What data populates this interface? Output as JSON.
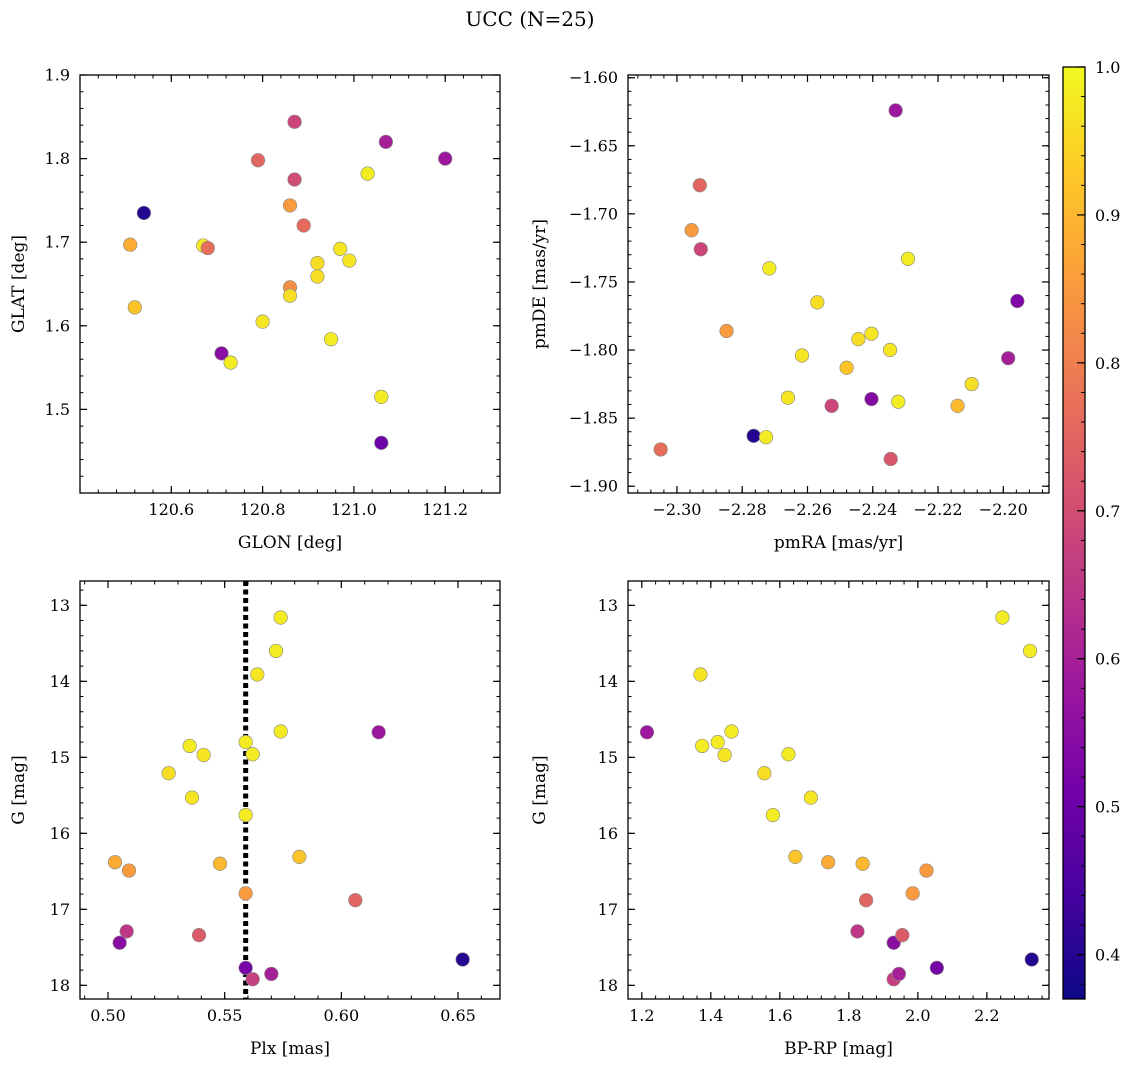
{
  "title": "UCC (N=25)",
  "colorbar": {
    "min": 0.37,
    "max": 1.0,
    "ticks": [
      0.4,
      0.5,
      0.6,
      0.7,
      0.8,
      0.9,
      1.0
    ],
    "tick_labels": [
      "0.4",
      "0.5",
      "0.6",
      "0.7",
      "0.8",
      "0.9",
      "1.0"
    ],
    "colormap": "plasma",
    "stops": [
      "#0d0887",
      "#46039f",
      "#7201a8",
      "#9c179e",
      "#bd3786",
      "#d8576b",
      "#ed7953",
      "#fb9f3a",
      "#fdca26",
      "#f0f921"
    ]
  },
  "chart_data": [
    {
      "type": "scatter",
      "id": "glon-glat",
      "xlabel": "GLON [deg]",
      "ylabel": "GLAT [deg]",
      "xlim": [
        120.4,
        121.32
      ],
      "ylim": [
        1.4,
        1.9
      ],
      "invert_y": false,
      "xticks": [
        120.6,
        120.8,
        121.0,
        121.2
      ],
      "xtick_labels": [
        "120.6",
        "120.8",
        "121.0",
        "121.2"
      ],
      "yticks": [
        1.5,
        1.6,
        1.7,
        1.8,
        1.9
      ],
      "ytick_labels": [
        "1.5",
        "1.6",
        "1.7",
        "1.8",
        "1.9"
      ],
      "points": [
        {
          "x": 120.54,
          "y": 1.735,
          "c": 0.4
        },
        {
          "x": 120.51,
          "y": 1.697,
          "c": 0.88
        },
        {
          "x": 120.52,
          "y": 1.622,
          "c": 0.92
        },
        {
          "x": 120.67,
          "y": 1.696,
          "c": 0.98
        },
        {
          "x": 120.68,
          "y": 1.693,
          "c": 0.77
        },
        {
          "x": 120.71,
          "y": 1.567,
          "c": 0.55
        },
        {
          "x": 120.73,
          "y": 1.556,
          "c": 0.98
        },
        {
          "x": 120.79,
          "y": 1.798,
          "c": 0.75
        },
        {
          "x": 120.8,
          "y": 1.605,
          "c": 0.97
        },
        {
          "x": 120.86,
          "y": 1.744,
          "c": 0.85
        },
        {
          "x": 120.86,
          "y": 1.646,
          "c": 0.83
        },
        {
          "x": 120.86,
          "y": 1.636,
          "c": 0.96
        },
        {
          "x": 120.87,
          "y": 1.844,
          "c": 0.68
        },
        {
          "x": 120.87,
          "y": 1.775,
          "c": 0.7
        },
        {
          "x": 120.89,
          "y": 1.72,
          "c": 0.76
        },
        {
          "x": 120.92,
          "y": 1.675,
          "c": 0.96
        },
        {
          "x": 120.92,
          "y": 1.659,
          "c": 0.96
        },
        {
          "x": 120.95,
          "y": 1.584,
          "c": 0.98
        },
        {
          "x": 120.97,
          "y": 1.692,
          "c": 0.97
        },
        {
          "x": 120.99,
          "y": 1.678,
          "c": 0.97
        },
        {
          "x": 121.03,
          "y": 1.782,
          "c": 0.98
        },
        {
          "x": 121.06,
          "y": 1.515,
          "c": 0.98
        },
        {
          "x": 121.06,
          "y": 1.46,
          "c": 0.5
        },
        {
          "x": 121.07,
          "y": 1.82,
          "c": 0.6
        },
        {
          "x": 121.2,
          "y": 1.8,
          "c": 0.58
        }
      ]
    },
    {
      "type": "scatter",
      "id": "pmra-pmde",
      "xlabel": "pmRA [mas/yr]",
      "ylabel": "pmDE [mas/yr]",
      "xlim": [
        -2.315,
        -2.186
      ],
      "ylim": [
        -1.905,
        -1.598
      ],
      "invert_y": false,
      "xticks": [
        -2.3,
        -2.28,
        -2.26,
        -2.24,
        -2.22,
        -2.2
      ],
      "xtick_labels": [
        "−2.30",
        "−2.28",
        "−2.26",
        "−2.24",
        "−2.22",
        "−2.20"
      ],
      "yticks": [
        -1.9,
        -1.85,
        -1.8,
        -1.75,
        -1.7,
        -1.65,
        -1.6
      ],
      "ytick_labels": [
        "−1.90",
        "−1.85",
        "−1.80",
        "−1.75",
        "−1.70",
        "−1.65",
        "−1.60"
      ],
      "points": [
        {
          "x": -2.305,
          "y": -1.873,
          "c": 0.77
        },
        {
          "x": -2.2955,
          "y": -1.712,
          "c": 0.85
        },
        {
          "x": -2.293,
          "y": -1.679,
          "c": 0.75
        },
        {
          "x": -2.2927,
          "y": -1.726,
          "c": 0.68
        },
        {
          "x": -2.2848,
          "y": -1.786,
          "c": 0.85
        },
        {
          "x": -2.2765,
          "y": -1.863,
          "c": 0.4
        },
        {
          "x": -2.2727,
          "y": -1.864,
          "c": 0.98
        },
        {
          "x": -2.2717,
          "y": -1.74,
          "c": 0.98
        },
        {
          "x": -2.266,
          "y": -1.835,
          "c": 0.97
        },
        {
          "x": -2.2617,
          "y": -1.804,
          "c": 0.97
        },
        {
          "x": -2.257,
          "y": -1.765,
          "c": 0.96
        },
        {
          "x": -2.2526,
          "y": -1.841,
          "c": 0.68
        },
        {
          "x": -2.248,
          "y": -1.813,
          "c": 0.92
        },
        {
          "x": -2.2444,
          "y": -1.792,
          "c": 0.96
        },
        {
          "x": -2.2404,
          "y": -1.788,
          "c": 0.97
        },
        {
          "x": -2.2404,
          "y": -1.836,
          "c": 0.54
        },
        {
          "x": -2.2347,
          "y": -1.8,
          "c": 0.97
        },
        {
          "x": -2.2345,
          "y": -1.88,
          "c": 0.72
        },
        {
          "x": -2.233,
          "y": -1.624,
          "c": 0.58
        },
        {
          "x": -2.2322,
          "y": -1.838,
          "c": 0.98
        },
        {
          "x": -2.2292,
          "y": -1.733,
          "c": 0.98
        },
        {
          "x": -2.214,
          "y": -1.841,
          "c": 0.9
        },
        {
          "x": -2.2097,
          "y": -1.825,
          "c": 0.96
        },
        {
          "x": -2.1985,
          "y": -1.806,
          "c": 0.6
        },
        {
          "x": -2.1957,
          "y": -1.764,
          "c": 0.53
        }
      ]
    },
    {
      "type": "scatter",
      "id": "plx-g",
      "xlabel": "Plx [mas]",
      "ylabel": "G [mag]",
      "xlim": [
        0.488,
        0.668
      ],
      "ylim": [
        12.68,
        18.18
      ],
      "invert_y": true,
      "vline": 0.559,
      "xticks": [
        0.5,
        0.55,
        0.6,
        0.65
      ],
      "xtick_labels": [
        "0.50",
        "0.55",
        "0.60",
        "0.65"
      ],
      "yticks": [
        13,
        14,
        15,
        16,
        17,
        18
      ],
      "ytick_labels": [
        "13",
        "14",
        "15",
        "16",
        "17",
        "18"
      ],
      "points": [
        {
          "x": 0.574,
          "y": 13.16,
          "c": 0.98
        },
        {
          "x": 0.572,
          "y": 13.6,
          "c": 0.98
        },
        {
          "x": 0.564,
          "y": 13.91,
          "c": 0.97
        },
        {
          "x": 0.574,
          "y": 14.66,
          "c": 0.98
        },
        {
          "x": 0.616,
          "y": 14.67,
          "c": 0.58
        },
        {
          "x": 0.559,
          "y": 14.8,
          "c": 0.98
        },
        {
          "x": 0.535,
          "y": 14.85,
          "c": 0.98
        },
        {
          "x": 0.562,
          "y": 14.96,
          "c": 0.98
        },
        {
          "x": 0.541,
          "y": 14.97,
          "c": 0.97
        },
        {
          "x": 0.526,
          "y": 15.21,
          "c": 0.96
        },
        {
          "x": 0.536,
          "y": 15.53,
          "c": 0.97
        },
        {
          "x": 0.559,
          "y": 15.76,
          "c": 0.98
        },
        {
          "x": 0.582,
          "y": 16.31,
          "c": 0.92
        },
        {
          "x": 0.503,
          "y": 16.38,
          "c": 0.88
        },
        {
          "x": 0.548,
          "y": 16.4,
          "c": 0.9
        },
        {
          "x": 0.509,
          "y": 16.49,
          "c": 0.85
        },
        {
          "x": 0.559,
          "y": 16.79,
          "c": 0.85
        },
        {
          "x": 0.606,
          "y": 16.88,
          "c": 0.75
        },
        {
          "x": 0.508,
          "y": 17.29,
          "c": 0.65
        },
        {
          "x": 0.539,
          "y": 17.34,
          "c": 0.73
        },
        {
          "x": 0.505,
          "y": 17.44,
          "c": 0.55
        },
        {
          "x": 0.652,
          "y": 17.66,
          "c": 0.4
        },
        {
          "x": 0.559,
          "y": 17.77,
          "c": 0.52
        },
        {
          "x": 0.57,
          "y": 17.85,
          "c": 0.6
        },
        {
          "x": 0.562,
          "y": 17.92,
          "c": 0.67
        }
      ]
    },
    {
      "type": "scatter",
      "id": "bprp-g",
      "xlabel": "BP-RP [mag]",
      "ylabel": "G [mag]",
      "xlim": [
        1.16,
        2.38
      ],
      "ylim": [
        12.68,
        18.18
      ],
      "invert_y": true,
      "xticks": [
        1.2,
        1.4,
        1.6,
        1.8,
        2.0,
        2.2
      ],
      "xtick_labels": [
        "1.2",
        "1.4",
        "1.6",
        "1.8",
        "2.0",
        "2.2"
      ],
      "yticks": [
        13,
        14,
        15,
        16,
        17,
        18
      ],
      "ytick_labels": [
        "13",
        "14",
        "15",
        "16",
        "17",
        "18"
      ],
      "points": [
        {
          "x": 1.215,
          "y": 14.67,
          "c": 0.58
        },
        {
          "x": 1.37,
          "y": 13.91,
          "c": 0.97
        },
        {
          "x": 1.375,
          "y": 14.85,
          "c": 0.98
        },
        {
          "x": 1.42,
          "y": 14.8,
          "c": 0.98
        },
        {
          "x": 1.44,
          "y": 14.97,
          "c": 0.97
        },
        {
          "x": 1.46,
          "y": 14.66,
          "c": 0.98
        },
        {
          "x": 1.555,
          "y": 15.21,
          "c": 0.96
        },
        {
          "x": 1.58,
          "y": 15.76,
          "c": 0.98
        },
        {
          "x": 1.625,
          "y": 14.96,
          "c": 0.98
        },
        {
          "x": 1.645,
          "y": 16.31,
          "c": 0.92
        },
        {
          "x": 1.69,
          "y": 15.53,
          "c": 0.97
        },
        {
          "x": 1.74,
          "y": 16.38,
          "c": 0.88
        },
        {
          "x": 1.825,
          "y": 17.29,
          "c": 0.65
        },
        {
          "x": 1.84,
          "y": 16.4,
          "c": 0.9
        },
        {
          "x": 1.85,
          "y": 16.88,
          "c": 0.75
        },
        {
          "x": 1.93,
          "y": 17.44,
          "c": 0.55
        },
        {
          "x": 1.93,
          "y": 17.92,
          "c": 0.67
        },
        {
          "x": 1.945,
          "y": 17.85,
          "c": 0.6
        },
        {
          "x": 1.955,
          "y": 17.34,
          "c": 0.73
        },
        {
          "x": 1.985,
          "y": 16.79,
          "c": 0.85
        },
        {
          "x": 2.025,
          "y": 16.49,
          "c": 0.85
        },
        {
          "x": 2.055,
          "y": 17.77,
          "c": 0.52
        },
        {
          "x": 2.245,
          "y": 13.16,
          "c": 0.98
        },
        {
          "x": 2.325,
          "y": 13.6,
          "c": 0.98
        },
        {
          "x": 2.33,
          "y": 17.66,
          "c": 0.4
        }
      ]
    }
  ]
}
